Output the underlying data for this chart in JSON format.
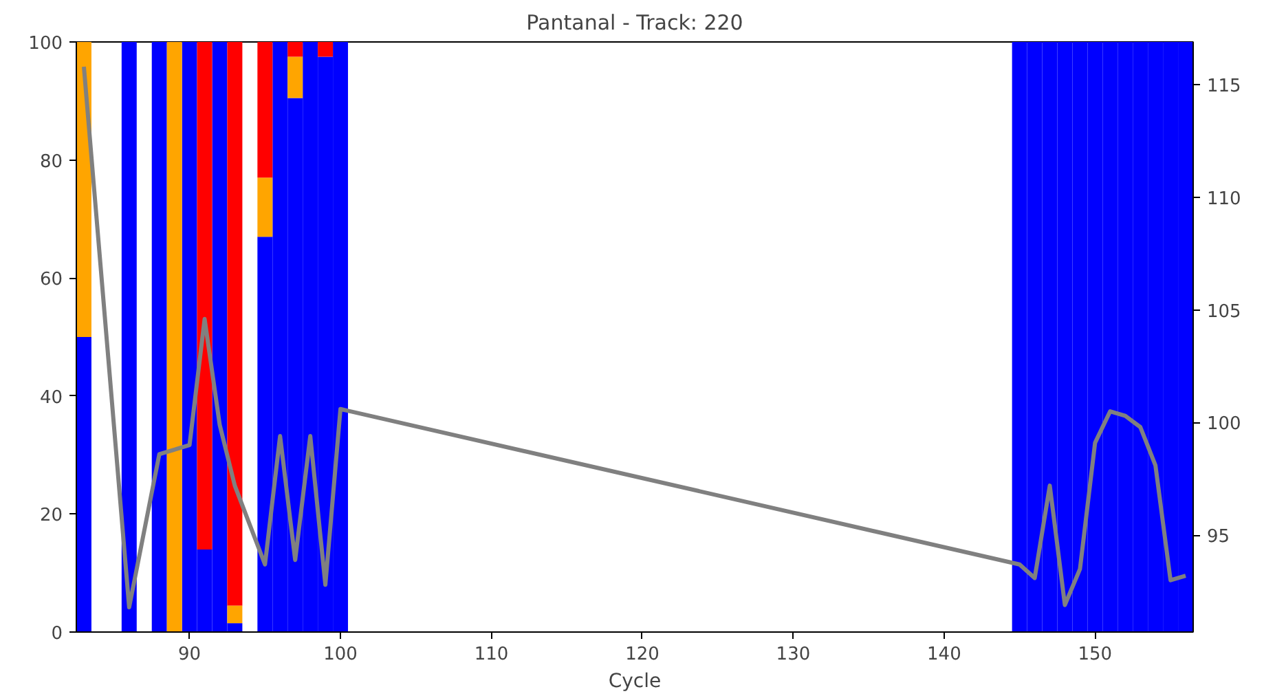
{
  "chart_data": {
    "type": "bar",
    "title": "Pantanal - Track: 220",
    "xlabel": "Cycle",
    "stacked": true,
    "x": [
      83,
      86,
      88,
      89,
      90,
      91,
      92,
      93,
      95,
      96,
      97,
      98,
      99,
      100,
      145,
      146,
      147,
      148,
      149,
      150,
      151,
      152,
      153,
      154,
      155,
      156
    ],
    "series": [
      {
        "color": "#0000ff",
        "values": [
          50,
          100,
          100,
          null,
          100,
          14,
          100,
          1.5,
          67,
          100,
          90.5,
          100,
          97.5,
          100,
          100,
          100,
          100,
          100,
          100,
          100,
          100,
          100,
          100,
          100,
          100,
          100
        ]
      },
      {
        "color": "#ffa500",
        "values": [
          50,
          null,
          null,
          100,
          null,
          null,
          null,
          3,
          10,
          null,
          7,
          null,
          null,
          null,
          null,
          null,
          null,
          null,
          null,
          null,
          null,
          null,
          null,
          null,
          null,
          null
        ]
      },
      {
        "color": "#ff0000",
        "values": [
          null,
          null,
          null,
          null,
          null,
          86,
          null,
          95.5,
          23,
          null,
          2.5,
          null,
          2.5,
          null,
          null,
          null,
          null,
          null,
          null,
          null,
          null,
          null,
          null,
          null,
          null,
          null
        ]
      },
      {
        "type": "line",
        "axis": "y2",
        "color": "#808080",
        "x": [
          83,
          86,
          88,
          90,
          91,
          92,
          93,
          95,
          96,
          97,
          98,
          99,
          100,
          145,
          146,
          147,
          148,
          149,
          150,
          151,
          152,
          153,
          154,
          155,
          156
        ],
        "values": [
          115.8,
          91.8,
          98.6,
          99.0,
          104.6,
          99.9,
          97.2,
          93.7,
          99.4,
          93.9,
          99.4,
          92.8,
          100.6,
          93.7,
          93.1,
          97.2,
          91.9,
          93.5,
          99.1,
          100.5,
          100.3,
          99.8,
          98.1,
          93.0,
          93.2
        ]
      }
    ],
    "xlim": [
      82.5,
      156.5
    ],
    "xticks": [
      90,
      100,
      110,
      120,
      130,
      140,
      150
    ],
    "ylim": [
      0,
      100
    ],
    "yticks": [
      0,
      20,
      40,
      60,
      80,
      100
    ],
    "y2lim": [
      90.7,
      116.9
    ],
    "y2ticks": [
      95,
      100,
      105,
      110,
      115
    ]
  }
}
